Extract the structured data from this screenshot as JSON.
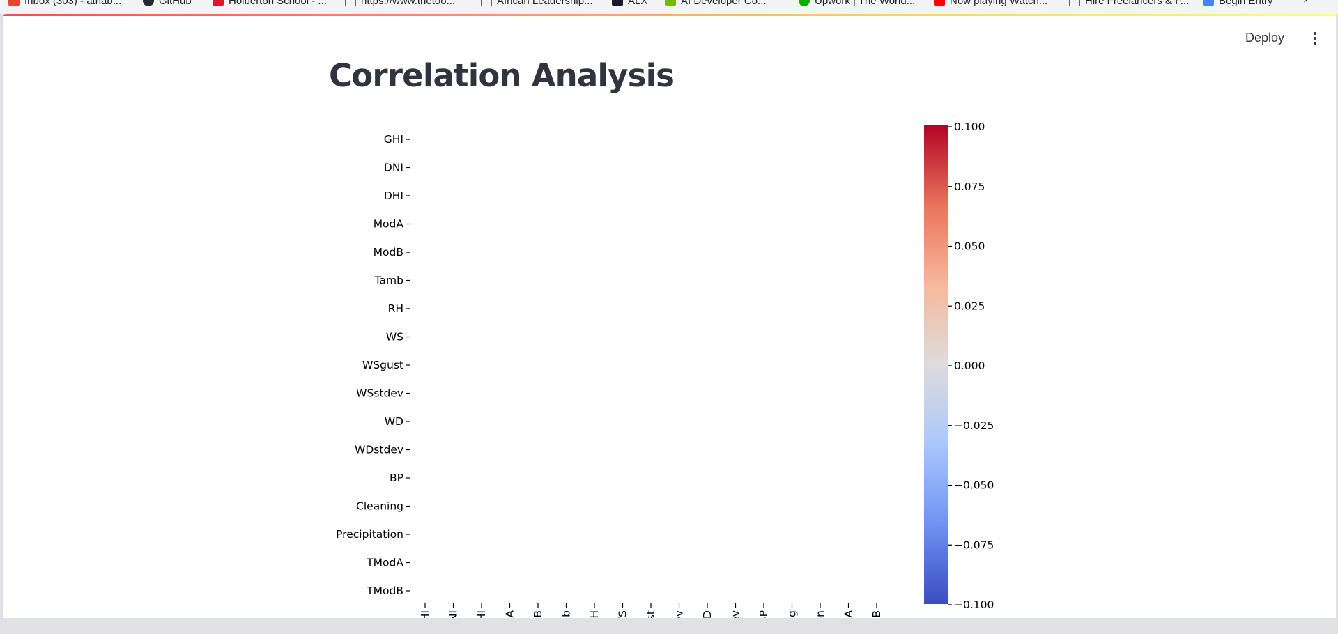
{
  "bookmarks": [
    {
      "label": "Inbox (303) - athab...",
      "icon": "gmail-icon",
      "color": "#ea4335"
    },
    {
      "label": "GitHub",
      "icon": "github-icon",
      "color": "#24292f"
    },
    {
      "label": "Holberton School - ...",
      "icon": "holberton-icon",
      "color": "#e0162b"
    },
    {
      "label": "https://www.thetoo...",
      "icon": "page-icon",
      "color": "#5f6368"
    },
    {
      "label": "African Leadership...",
      "icon": "page-icon",
      "color": "#5f6368"
    },
    {
      "label": "ALX",
      "icon": "alx-icon",
      "color": "#1a1a2e"
    },
    {
      "label": "AI Developer Co...",
      "icon": "nvidia-icon",
      "color": "#76b900"
    },
    {
      "label": "Upwork | The World...",
      "icon": "upwork-icon",
      "color": "#14a800"
    },
    {
      "label": "Now playing Watch...",
      "icon": "youtube-icon",
      "color": "#ff0000"
    },
    {
      "label": "Hire Freelancers & F...",
      "icon": "page-icon",
      "color": "#5f6368"
    },
    {
      "label": "Begin Entry",
      "icon": "sheet-icon",
      "color": "#4285f4"
    }
  ],
  "header": {
    "deploy_label": "Deploy",
    "menu_icon": "more-vert-icon"
  },
  "page": {
    "title": "Correlation Analysis"
  },
  "chart_data": {
    "type": "heatmap",
    "title": "",
    "rows": [
      "GHI",
      "DNI",
      "DHI",
      "ModA",
      "ModB",
      "Tamb",
      "RH",
      "WS",
      "WSgust",
      "WSstdev",
      "WD",
      "WDstdev",
      "BP",
      "Cleaning",
      "Precipitation",
      "TModA",
      "TModB"
    ],
    "column_tick_labels_visible": [
      "GHI",
      "DNI",
      "DHI",
      "dA",
      "dB",
      "mb",
      "RH",
      "WS",
      "ust",
      "dev",
      "WD",
      "dev",
      "BP",
      "ing",
      "ion",
      "odA",
      "odB"
    ],
    "values": "empty (no cells rendered)",
    "colormap": "coolwarm",
    "colorbar": {
      "range": [
        -0.1,
        0.1
      ],
      "ticks": [
        "0.100",
        "0.075",
        "0.050",
        "0.025",
        "0.000",
        "−0.025",
        "−0.050",
        "−0.075",
        "−0.100"
      ],
      "colors": [
        "#3b4cc0",
        "#6f92f3",
        "#aac7fd",
        "#dddcdc",
        "#f7b89c",
        "#e7745b",
        "#b40426"
      ]
    },
    "grid": false
  }
}
